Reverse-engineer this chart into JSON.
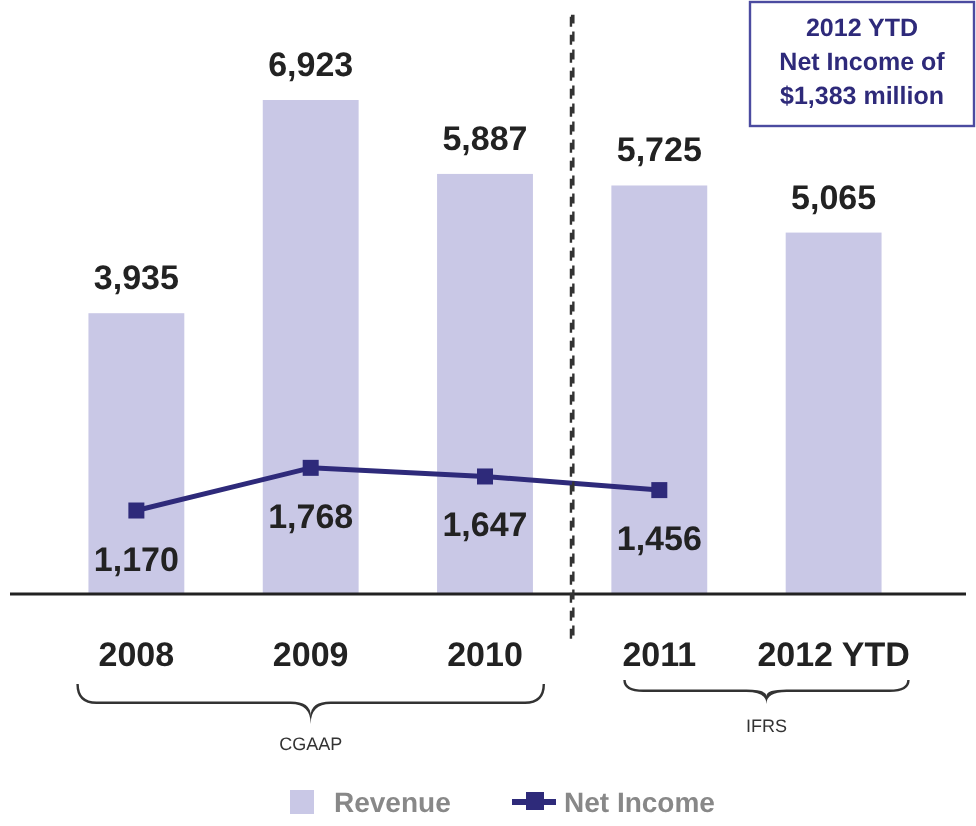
{
  "chart_data": {
    "type": "bar",
    "categories": [
      "2008",
      "2009",
      "2010",
      "2011",
      "2012 YTD"
    ],
    "series": [
      {
        "name": "Revenue",
        "color": "#c9c8e6",
        "values": [
          3935,
          6923,
          5887,
          5725,
          5065
        ],
        "value_labels": [
          "3,935",
          "6,923",
          "5,887",
          "5,725",
          "5,065"
        ]
      },
      {
        "name": "Net Income",
        "type": "line",
        "color": "#2e2a7a",
        "values": [
          1170,
          1768,
          1647,
          1456,
          null
        ],
        "value_labels": [
          "1,170",
          "1,768",
          "1,647",
          "1,456",
          null
        ]
      }
    ],
    "marker": "square",
    "legend": "bottom",
    "annotations": [
      "2012 YTD Net Income of $1,383 million",
      "CGAAP",
      "IFRS"
    ]
  }
}
